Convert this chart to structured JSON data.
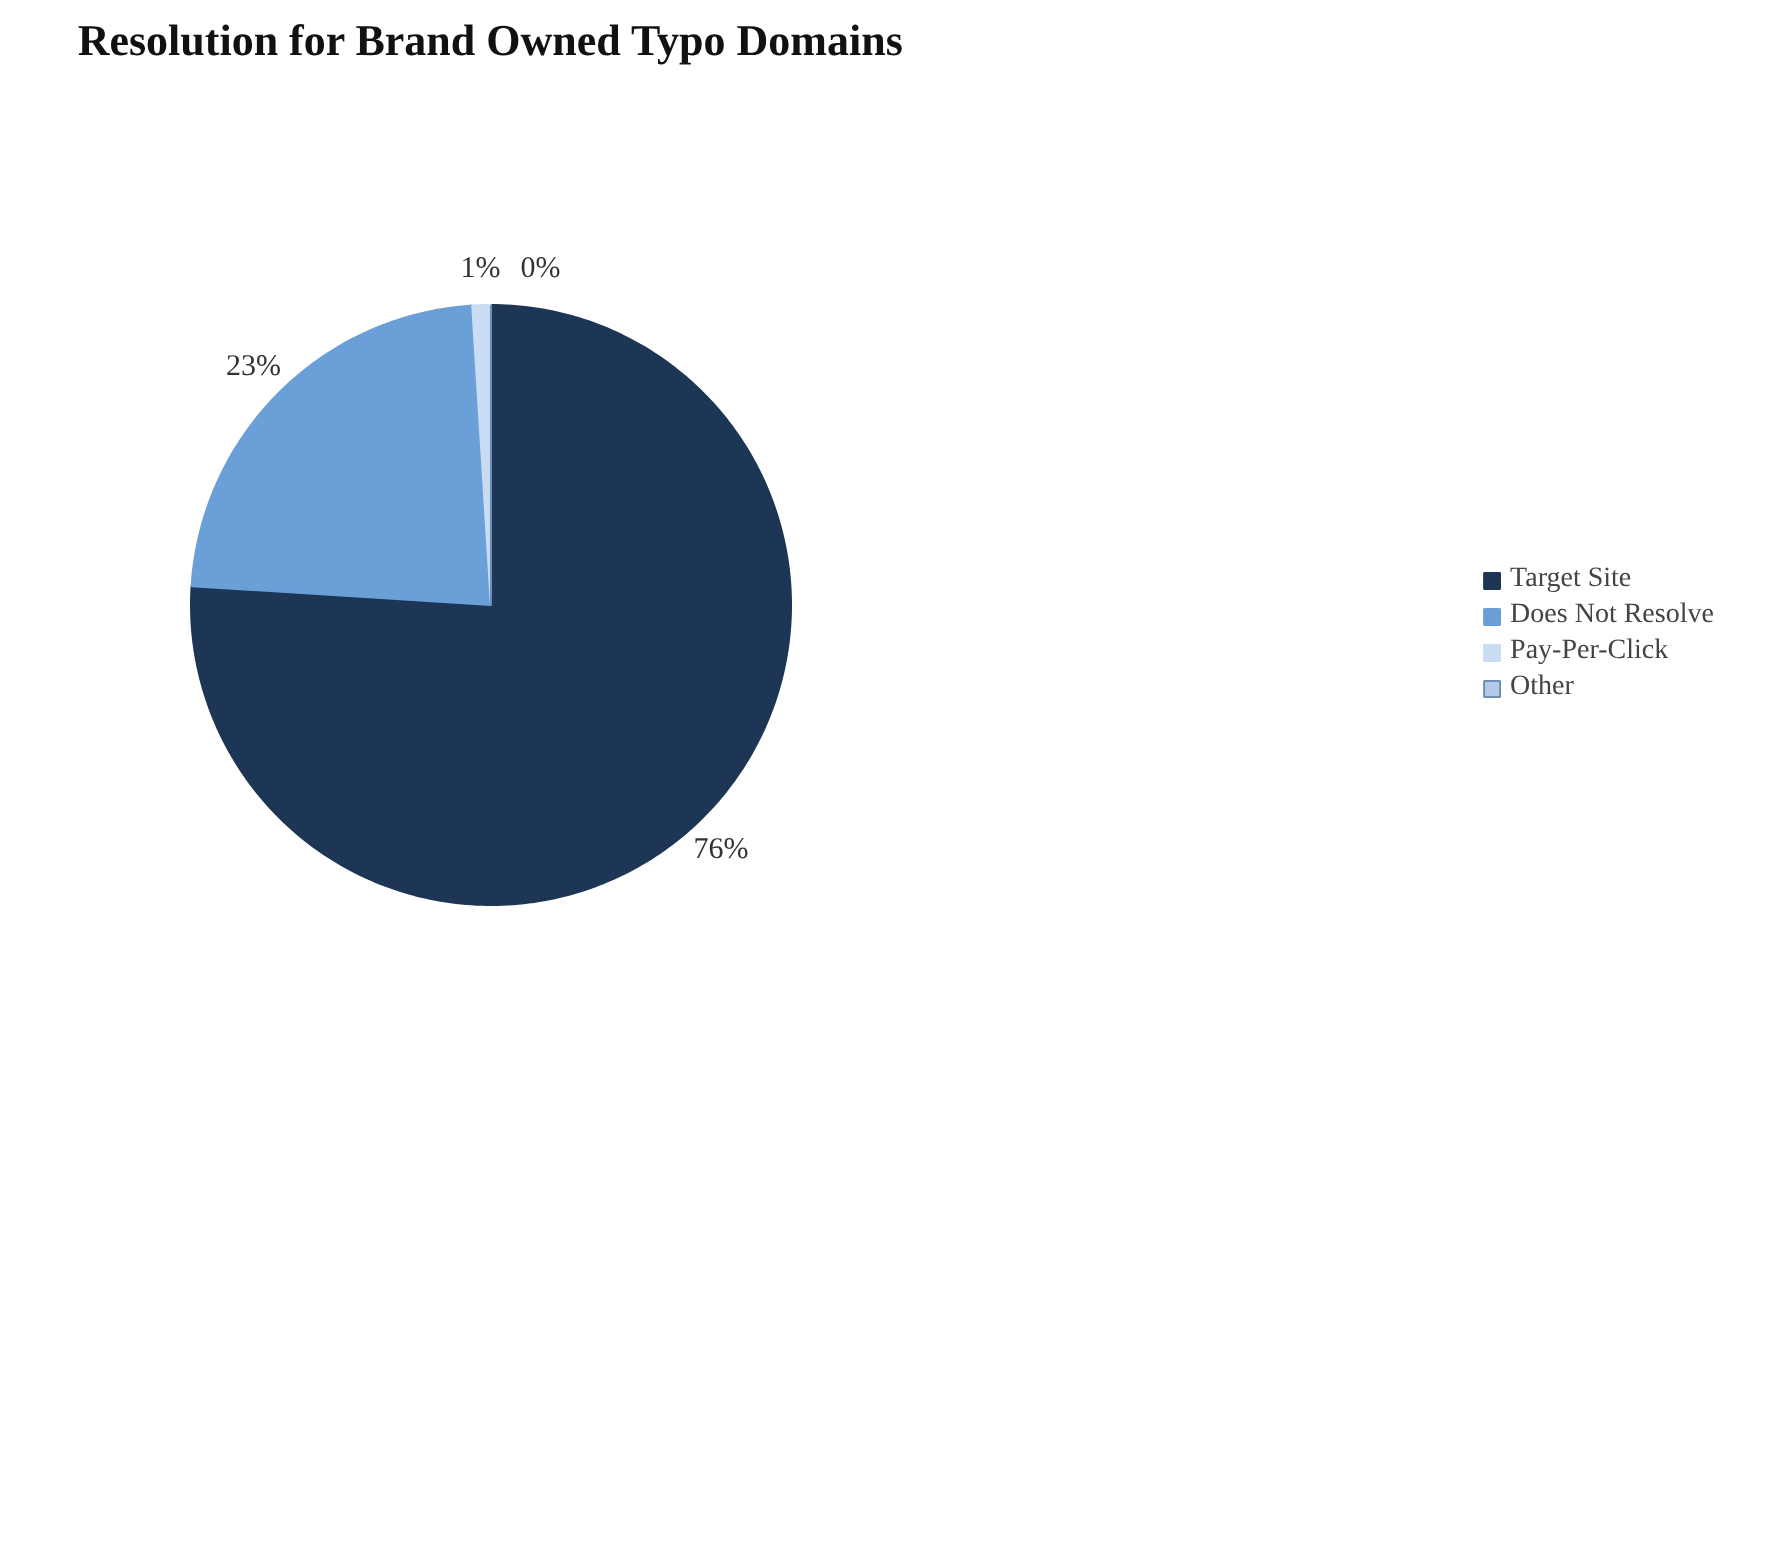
{
  "chart_data": {
    "type": "pie",
    "title": "Resolution for Brand Owned Typo Domains",
    "categories": [
      "Target Site",
      "Does Not Resolve",
      "Pay-Per-Click",
      "Other"
    ],
    "values": [
      76,
      23,
      1,
      0
    ],
    "value_labels": [
      "76%",
      "23%",
      "1%",
      "0%"
    ],
    "colors": [
      "#1d3655",
      "#6a9fd8",
      "#c9dcf2",
      "#b3cbe8"
    ],
    "legend": "right"
  }
}
